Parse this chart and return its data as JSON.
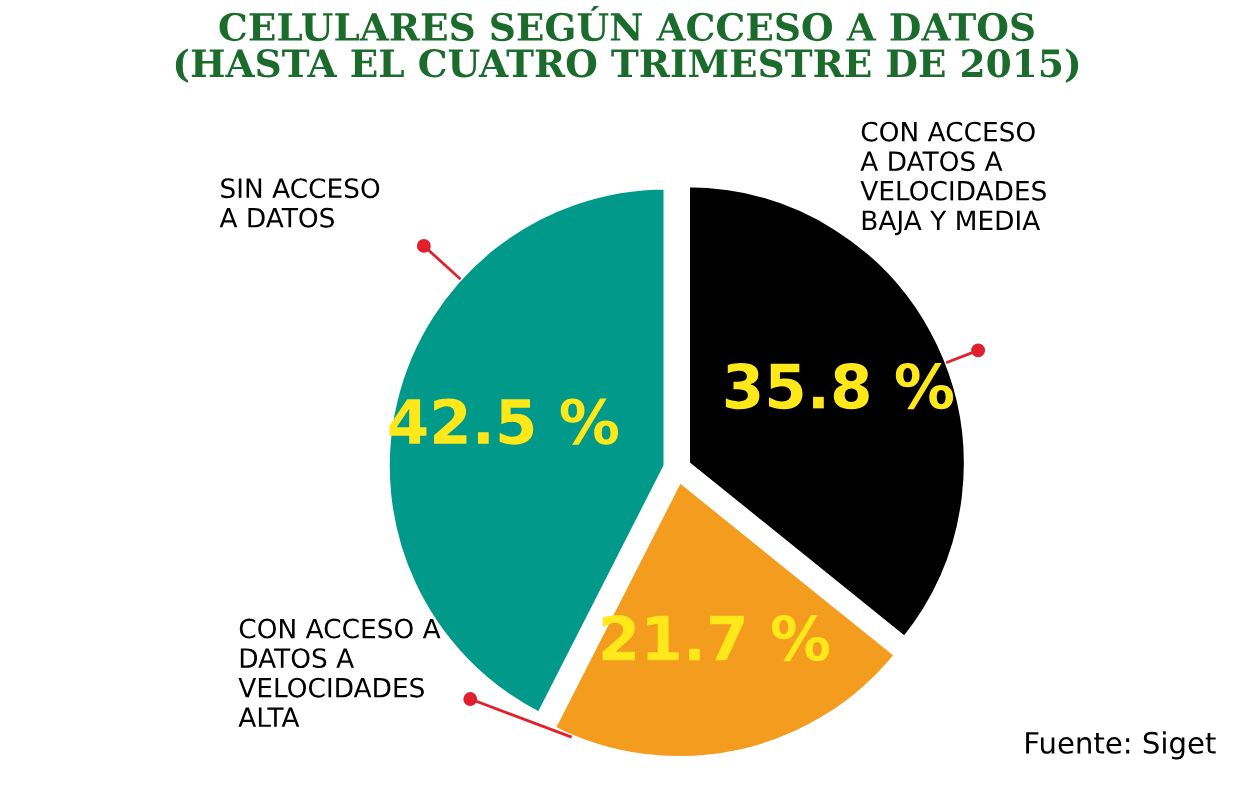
{
  "chart_data": {
    "type": "pie",
    "title": "CELULARES SEGÚN ACCESO A DATOS\n(HASTA EL CUATRO TRIMESTRE DE 2015)",
    "categories": [
      "CON ACCESO\nA DATOS A\nVELOCIDADES\nBAJA Y MEDIA",
      "CON ACCESO A\nDATOS A\nVELOCIDADES\nALTA",
      "SIN ACCESO\nA DATOS"
    ],
    "values": [
      35.8,
      21.7,
      42.5
    ],
    "colors": [
      "#000000",
      "#f39c1e",
      "#00998a"
    ],
    "value_labels": [
      "35.8 %",
      "21.7 %",
      "42.5 %"
    ],
    "annotations": [
      "Fuente: Siget"
    ],
    "legend": false
  }
}
